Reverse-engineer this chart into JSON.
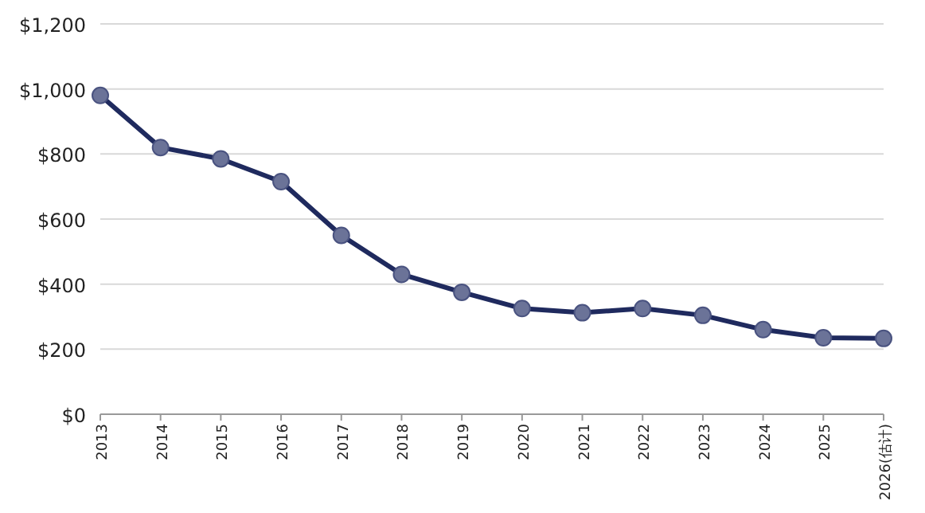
{
  "chart_data": {
    "type": "line",
    "categories": [
      "2013",
      "2014",
      "2015",
      "2016",
      "2017",
      "2018",
      "2019",
      "2020",
      "2021",
      "2022",
      "2023",
      "2024",
      "2025",
      "2026(估计)"
    ],
    "series": [
      {
        "color": "#1f2a5e",
        "values": [
          980,
          820,
          785,
          715,
          550,
          430,
          375,
          325,
          312,
          325,
          304,
          260,
          235,
          233
        ]
      }
    ],
    "ylim": [
      0,
      1200
    ],
    "yticks": [
      {
        "value": 0,
        "label": "$0"
      },
      {
        "value": 200,
        "label": "$200"
      },
      {
        "value": 400,
        "label": "$400"
      },
      {
        "value": 600,
        "label": "$600"
      },
      {
        "value": 800,
        "label": "$800"
      },
      {
        "value": 1000,
        "label": "$1,000"
      },
      {
        "value": 1200,
        "label": "$1,200"
      }
    ],
    "grid": "y",
    "marker": "circle",
    "line_style": "solid"
  }
}
